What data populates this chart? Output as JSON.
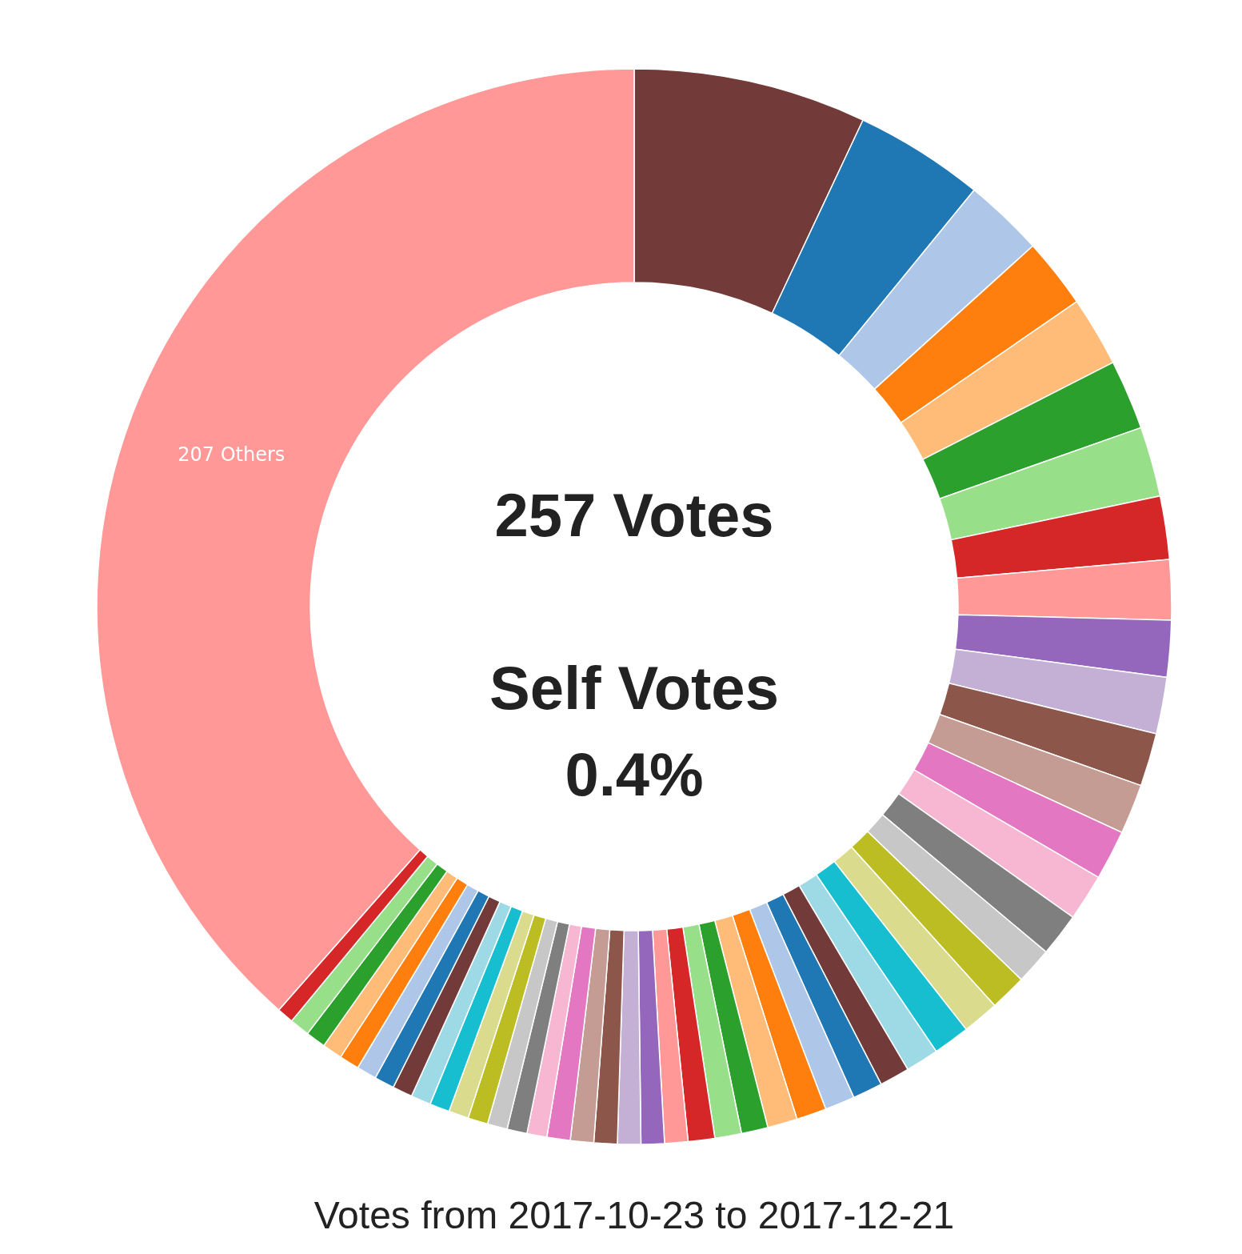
{
  "chart_data": {
    "type": "donut",
    "title": "Votes from 2017-10-23 to 2017-12-21",
    "annotations": [
      "257 Votes",
      "Self Votes",
      "0.4%"
    ],
    "categories": [
      null,
      null,
      null,
      null,
      null,
      null,
      null,
      null,
      null,
      null,
      null,
      null,
      null,
      null,
      null,
      null,
      null,
      null,
      null,
      null,
      null,
      null,
      null,
      null,
      null,
      null,
      null,
      null,
      null,
      null,
      null,
      null,
      null,
      null,
      null,
      null,
      null,
      null,
      null,
      null,
      null,
      null,
      null,
      null,
      null,
      null,
      null,
      null,
      null,
      null,
      "207 Others"
    ],
    "values": [
      7.0,
      3.9,
      2.4,
      2.1,
      2.1,
      2.1,
      2.1,
      1.9,
      1.8,
      1.7,
      1.7,
      1.6,
      1.5,
      1.5,
      1.4,
      1.3,
      1.1,
      1.1,
      1.1,
      1.1,
      1.0,
      0.9,
      0.9,
      0.9,
      0.9,
      0.9,
      0.8,
      0.8,
      0.8,
      0.7,
      0.7,
      0.7,
      0.7,
      0.7,
      0.7,
      0.6,
      0.6,
      0.6,
      0.6,
      0.6,
      0.6,
      0.6,
      0.6,
      0.6,
      0.6,
      0.6,
      0.6,
      0.6,
      0.6,
      0.5,
      38.5
    ],
    "colors": [
      "#723a38",
      "#1f77b4",
      "#aec7e8",
      "#ff7f0e",
      "#ffbb78",
      "#2ca02c",
      "#98df8a",
      "#d62728",
      "#ff9896",
      "#9467bd",
      "#c5b0d5",
      "#8c564b",
      "#c49c94",
      "#e377c2",
      "#f7b6d2",
      "#7f7f7f",
      "#c7c7c7",
      "#bcbd22",
      "#dbdb8d",
      "#17becf",
      "#9edae5",
      "#723a38",
      "#1f77b4",
      "#aec7e8",
      "#ff7f0e",
      "#ffbb78",
      "#2ca02c",
      "#98df8a",
      "#d62728",
      "#ff9896",
      "#9467bd",
      "#c5b0d5",
      "#8c564b",
      "#c49c94",
      "#e377c2",
      "#f7b6d2",
      "#7f7f7f",
      "#c7c7c7",
      "#bcbd22",
      "#dbdb8d",
      "#17becf",
      "#9edae5",
      "#723a38",
      "#1f77b4",
      "#aec7e8",
      "#ff7f0e",
      "#ffbb78",
      "#2ca02c",
      "#98df8a",
      "#d62728",
      "#ff9896"
    ]
  }
}
